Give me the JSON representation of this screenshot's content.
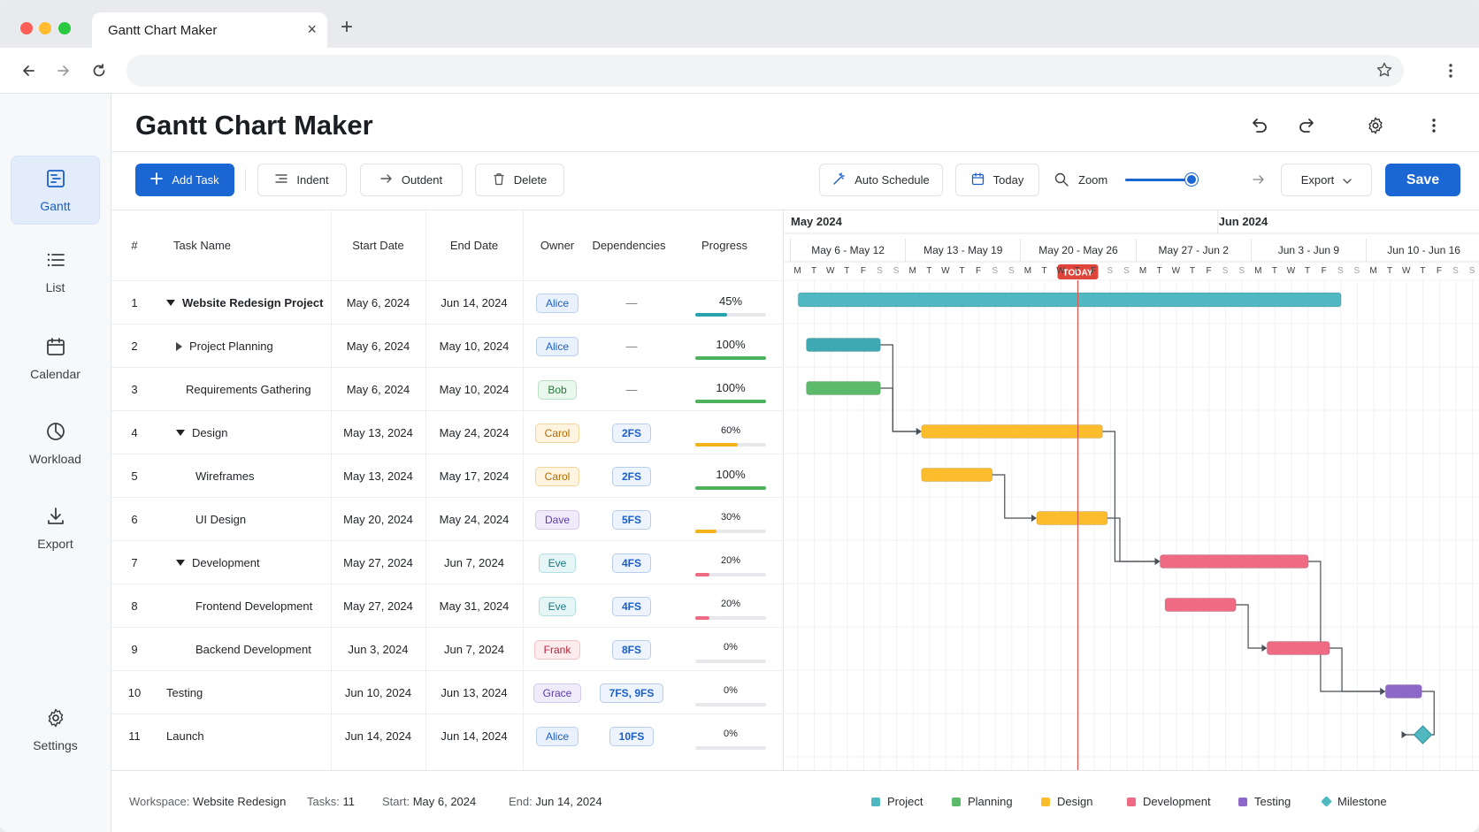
{
  "browser": {
    "tab_title": "Gantt Chart Maker",
    "close_glyph": "×",
    "newtab_glyph": "+"
  },
  "rail": [
    {
      "id": "gantt",
      "label": "Gantt",
      "icon": "gantt-icon",
      "active": true
    },
    {
      "id": "list",
      "label": "List",
      "icon": "list-icon",
      "active": false
    },
    {
      "id": "calendar",
      "label": "Calendar",
      "icon": "calendar-icon",
      "active": false
    },
    {
      "id": "workload",
      "label": "Workload",
      "icon": "pie-chart-icon",
      "active": false
    },
    {
      "id": "export",
      "label": "Export",
      "icon": "download-icon",
      "active": false
    },
    {
      "id": "settings",
      "label": "Settings",
      "icon": "gear-icon",
      "active": false
    }
  ],
  "header": {
    "title": "Gantt Chart Maker"
  },
  "toolbar": {
    "add_task": "Add Task",
    "indent": "Indent",
    "outdent": "Outdent",
    "delete": "Delete",
    "auto_schedule": "Auto Schedule",
    "today": "Today",
    "zoom": "Zoom",
    "zoom_level": 0.67,
    "export": "Export",
    "save": "Save"
  },
  "table": {
    "headers": [
      "#",
      "Task Name",
      "Start Date",
      "End Date",
      "Owner",
      "Dependencies",
      "Progress"
    ],
    "rows": [
      {
        "num": "1",
        "name": "Website Redesign Project",
        "bold": true,
        "indent": 0,
        "caret": "down",
        "start": "May 6, 2024",
        "end": "Jun 14, 2024",
        "owner": "Alice",
        "dep": "—",
        "progress": "45%",
        "pct": 45
      },
      {
        "num": "2",
        "name": "Project Planning",
        "bold": false,
        "indent": 1,
        "caret": "right",
        "start": "May 6, 2024",
        "end": "May 10, 2024",
        "owner": "Alice",
        "dep": "—",
        "progress": "100%",
        "pct": 100
      },
      {
        "num": "3",
        "name": "Requirements Gathering",
        "bold": false,
        "indent": 2,
        "caret": "",
        "start": "May 6, 2024",
        "end": "May 10, 2024",
        "owner": "Bob",
        "dep": "—",
        "progress": "100%",
        "pct": 100
      },
      {
        "num": "4",
        "name": "Design",
        "bold": false,
        "indent": 1,
        "caret": "down",
        "start": "May 13, 2024",
        "end": "May 24, 2024",
        "owner": "Carol",
        "dep": "2FS",
        "progress": "60%",
        "pct": 60
      },
      {
        "num": "5",
        "name": "Wireframes",
        "bold": false,
        "indent": 3,
        "caret": "",
        "start": "May 13, 2024",
        "end": "May 17, 2024",
        "owner": "Carol",
        "dep": "2FS",
        "progress": "100%",
        "pct": 100
      },
      {
        "num": "6",
        "name": "UI Design",
        "bold": false,
        "indent": 3,
        "caret": "",
        "start": "May 20, 2024",
        "end": "May 24, 2024",
        "owner": "Dave",
        "dep": "5FS",
        "progress": "30%",
        "pct": 30
      },
      {
        "num": "7",
        "name": "Development",
        "bold": false,
        "indent": 1,
        "caret": "down",
        "start": "May 27, 2024",
        "end": "Jun 7, 2024",
        "owner": "Eve",
        "dep": "4FS",
        "progress": "20%",
        "pct": 20
      },
      {
        "num": "8",
        "name": "Frontend Development",
        "bold": false,
        "indent": 3,
        "caret": "",
        "start": "May 27, 2024",
        "end": "May 31, 2024",
        "owner": "Eve",
        "dep": "4FS",
        "progress": "20%",
        "pct": 20
      },
      {
        "num": "9",
        "name": "Backend Development",
        "bold": false,
        "indent": 3,
        "caret": "",
        "start": "Jun 3, 2024",
        "end": "Jun 7, 2024",
        "owner": "Frank",
        "dep": "8FS",
        "progress": "0%",
        "pct": 0
      },
      {
        "num": "10",
        "name": "Testing",
        "bold": false,
        "indent": 0,
        "caret": "",
        "start": "Jun 10, 2024",
        "end": "Jun 13, 2024",
        "owner": "Grace",
        "dep": "7FS, 9FS",
        "progress": "0%",
        "pct": 0
      },
      {
        "num": "11",
        "name": "Launch",
        "bold": false,
        "indent": 0,
        "caret": "",
        "start": "Jun 14, 2024",
        "end": "Jun 14, 2024",
        "owner": "Alice",
        "dep": "10FS",
        "progress": "0%",
        "pct": 0
      }
    ]
  },
  "owner_colors": {
    "Alice": {
      "bg": "#e8f1fd",
      "border": "#b8cff0",
      "fg": "#1a5fc8"
    },
    "Bob": {
      "bg": "#e9f7ec",
      "border": "#b9e0c2",
      "fg": "#237a3b"
    },
    "Carol": {
      "bg": "#fff4e0",
      "border": "#f3d49b",
      "fg": "#b26a00"
    },
    "Dave": {
      "bg": "#f0ebfb",
      "border": "#d3c6f0",
      "fg": "#5b3aa8"
    },
    "Eve": {
      "bg": "#e6f6f7",
      "border": "#b4e0e4",
      "fg": "#167a84"
    },
    "Frank": {
      "bg": "#fdecee",
      "border": "#f3c2c8",
      "fg": "#b3263a"
    },
    "Grace": {
      "bg": "#f0ebfb",
      "border": "#d3c6f0",
      "fg": "#5b3aa8"
    }
  },
  "gantt": {
    "months": [
      {
        "label": "May 2024",
        "day": 0
      },
      {
        "label": "Jun 2024",
        "day": 26
      }
    ],
    "weeks": [
      "May 6 - May 12",
      "May 13 - May 19",
      "May 20 - May 26",
      "May 27 - Jun 2",
      "Jun 3 - Jun 9",
      "Jun 10 - Jun 16"
    ],
    "day_letters": [
      "M",
      "T",
      "W",
      "T",
      "F",
      "S",
      "S"
    ],
    "today_label": "TODAY",
    "today_day": 17.5,
    "bars": [
      {
        "row": 0,
        "start": 0.5,
        "end": 33.5,
        "color": "#4fb8c0",
        "kind": "project"
      },
      {
        "row": 1,
        "start": 1,
        "end": 5.5,
        "color": "#3ea9b3",
        "kind": "bar"
      },
      {
        "row": 2,
        "start": 1,
        "end": 5.5,
        "color": "#5bbb6a",
        "kind": "bar"
      },
      {
        "row": 3,
        "start": 8,
        "end": 19,
        "color": "#fbbd2c",
        "kind": "bar"
      },
      {
        "row": 4,
        "start": 8,
        "end": 12.3,
        "color": "#fbbd2c",
        "kind": "bar"
      },
      {
        "row": 5,
        "start": 15,
        "end": 19.3,
        "color": "#fbbd2c",
        "kind": "bar"
      },
      {
        "row": 6,
        "start": 22.5,
        "end": 31.5,
        "color": "#ef6b83",
        "kind": "bar"
      },
      {
        "row": 7,
        "start": 22.8,
        "end": 27.1,
        "color": "#ef6b83",
        "kind": "bar"
      },
      {
        "row": 8,
        "start": 29,
        "end": 32.8,
        "color": "#ef6b83",
        "kind": "bar"
      },
      {
        "row": 9,
        "start": 36.2,
        "end": 38.4,
        "color": "#8e68c9",
        "kind": "bar"
      },
      {
        "row": 10,
        "start": 37.5,
        "end": 37.5,
        "color": "#4fb8c0",
        "kind": "milestone"
      }
    ],
    "links": [
      [
        1,
        5.5,
        3,
        8
      ],
      [
        2,
        5.5,
        3,
        8
      ],
      [
        4,
        12.3,
        5,
        15
      ],
      [
        3,
        19,
        6,
        22.5
      ],
      [
        5,
        19.3,
        6,
        22.5
      ],
      [
        7,
        27.1,
        8,
        29
      ],
      [
        6,
        31.5,
        9,
        36.2
      ],
      [
        8,
        32.8,
        9,
        36.2
      ],
      [
        9,
        38.4,
        10,
        37.5
      ]
    ]
  },
  "footer": {
    "workspace_label": "Workspace:",
    "workspace": "Website Redesign",
    "tasks_label": "Tasks:",
    "tasks": "11",
    "start_label": "Start:",
    "start": "May 6, 2024",
    "end_label": "End:",
    "end": "Jun 14, 2024",
    "legend": [
      {
        "label": "Project",
        "color": "#4fb8c0",
        "shape": "square"
      },
      {
        "label": "Planning",
        "color": "#5bbb6a",
        "shape": "square"
      },
      {
        "label": "Design",
        "color": "#fbbd2c",
        "shape": "square"
      },
      {
        "label": "Development",
        "color": "#ef6b83",
        "shape": "square"
      },
      {
        "label": "Testing",
        "color": "#8e68c9",
        "shape": "square"
      },
      {
        "label": "Milestone",
        "color": "#4fb8c0",
        "shape": "diamond"
      }
    ]
  }
}
